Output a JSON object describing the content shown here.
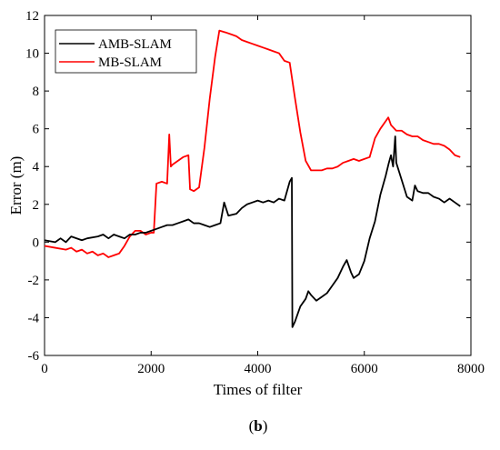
{
  "chart_data": {
    "type": "line",
    "title": "",
    "xlabel": "Times of filter",
    "ylabel": "Error (m)",
    "xlim": [
      0,
      8000
    ],
    "ylim": [
      -6,
      12
    ],
    "xticks": [
      0,
      2000,
      4000,
      6000,
      8000
    ],
    "yticks": [
      -6,
      -4,
      -2,
      0,
      2,
      4,
      6,
      8,
      10,
      12
    ],
    "grid": false,
    "legend": "top-left",
    "series": [
      {
        "name": "AMB-SLAM",
        "color": "#000000",
        "points": [
          [
            0,
            0.1
          ],
          [
            200,
            0.0
          ],
          [
            300,
            0.2
          ],
          [
            400,
            0.0
          ],
          [
            500,
            0.3
          ],
          [
            700,
            0.1
          ],
          [
            800,
            0.2
          ],
          [
            1000,
            0.3
          ],
          [
            1100,
            0.4
          ],
          [
            1200,
            0.2
          ],
          [
            1300,
            0.4
          ],
          [
            1400,
            0.3
          ],
          [
            1500,
            0.2
          ],
          [
            1600,
            0.4
          ],
          [
            1700,
            0.4
          ],
          [
            1800,
            0.5
          ],
          [
            1900,
            0.5
          ],
          [
            2000,
            0.6
          ],
          [
            2100,
            0.7
          ],
          [
            2200,
            0.8
          ],
          [
            2300,
            0.9
          ],
          [
            2400,
            0.9
          ],
          [
            2500,
            1.0
          ],
          [
            2600,
            1.1
          ],
          [
            2700,
            1.2
          ],
          [
            2800,
            1.0
          ],
          [
            2900,
            1.0
          ],
          [
            3000,
            0.9
          ],
          [
            3100,
            0.8
          ],
          [
            3200,
            0.9
          ],
          [
            3300,
            1.0
          ],
          [
            3370,
            2.1
          ],
          [
            3450,
            1.4
          ],
          [
            3600,
            1.5
          ],
          [
            3700,
            1.8
          ],
          [
            3800,
            2.0
          ],
          [
            3900,
            2.1
          ],
          [
            4000,
            2.2
          ],
          [
            4100,
            2.1
          ],
          [
            4200,
            2.2
          ],
          [
            4300,
            2.1
          ],
          [
            4400,
            2.3
          ],
          [
            4500,
            2.2
          ],
          [
            4600,
            3.2
          ],
          [
            4640,
            3.4
          ],
          [
            4650,
            -4.5
          ],
          [
            4700,
            -4.2
          ],
          [
            4800,
            -3.4
          ],
          [
            4900,
            -3.0
          ],
          [
            4950,
            -2.6
          ],
          [
            5000,
            -2.8
          ],
          [
            5100,
            -3.1
          ],
          [
            5200,
            -2.9
          ],
          [
            5300,
            -2.7
          ],
          [
            5400,
            -2.3
          ],
          [
            5500,
            -1.9
          ],
          [
            5600,
            -1.3
          ],
          [
            5670,
            -0.95
          ],
          [
            5750,
            -1.6
          ],
          [
            5800,
            -1.9
          ],
          [
            5900,
            -1.7
          ],
          [
            6000,
            -1.0
          ],
          [
            6100,
            0.2
          ],
          [
            6200,
            1.1
          ],
          [
            6300,
            2.5
          ],
          [
            6400,
            3.5
          ],
          [
            6460,
            4.2
          ],
          [
            6500,
            4.6
          ],
          [
            6540,
            4.0
          ],
          [
            6580,
            5.6
          ],
          [
            6600,
            4.2
          ],
          [
            6700,
            3.3
          ],
          [
            6800,
            2.4
          ],
          [
            6900,
            2.2
          ],
          [
            6950,
            3.0
          ],
          [
            7000,
            2.7
          ],
          [
            7100,
            2.6
          ],
          [
            7200,
            2.6
          ],
          [
            7300,
            2.4
          ],
          [
            7400,
            2.3
          ],
          [
            7500,
            2.1
          ],
          [
            7600,
            2.3
          ],
          [
            7700,
            2.1
          ],
          [
            7800,
            1.9
          ]
        ]
      },
      {
        "name": "MB-SLAM",
        "color": "#ff0000",
        "points": [
          [
            0,
            -0.2
          ],
          [
            200,
            -0.3
          ],
          [
            400,
            -0.4
          ],
          [
            500,
            -0.3
          ],
          [
            600,
            -0.5
          ],
          [
            700,
            -0.4
          ],
          [
            800,
            -0.6
          ],
          [
            900,
            -0.5
          ],
          [
            1000,
            -0.7
          ],
          [
            1100,
            -0.6
          ],
          [
            1200,
            -0.8
          ],
          [
            1300,
            -0.7
          ],
          [
            1400,
            -0.6
          ],
          [
            1500,
            -0.2
          ],
          [
            1600,
            0.3
          ],
          [
            1700,
            0.6
          ],
          [
            1800,
            0.6
          ],
          [
            1900,
            0.4
          ],
          [
            2000,
            0.5
          ],
          [
            2050,
            0.5
          ],
          [
            2100,
            3.1
          ],
          [
            2200,
            3.2
          ],
          [
            2300,
            3.1
          ],
          [
            2340,
            5.7
          ],
          [
            2370,
            4.0
          ],
          [
            2400,
            4.1
          ],
          [
            2500,
            4.3
          ],
          [
            2600,
            4.5
          ],
          [
            2700,
            4.6
          ],
          [
            2730,
            2.8
          ],
          [
            2800,
            2.7
          ],
          [
            2900,
            2.9
          ],
          [
            3000,
            5.0
          ],
          [
            3100,
            7.6
          ],
          [
            3200,
            9.8
          ],
          [
            3280,
            11.2
          ],
          [
            3400,
            11.1
          ],
          [
            3500,
            11.0
          ],
          [
            3600,
            10.9
          ],
          [
            3700,
            10.7
          ],
          [
            3800,
            10.6
          ],
          [
            3900,
            10.5
          ],
          [
            4000,
            10.4
          ],
          [
            4100,
            10.3
          ],
          [
            4200,
            10.2
          ],
          [
            4300,
            10.1
          ],
          [
            4400,
            10.0
          ],
          [
            4500,
            9.6
          ],
          [
            4600,
            9.5
          ],
          [
            4700,
            7.6
          ],
          [
            4800,
            5.8
          ],
          [
            4900,
            4.3
          ],
          [
            5000,
            3.8
          ],
          [
            5100,
            3.8
          ],
          [
            5200,
            3.8
          ],
          [
            5300,
            3.9
          ],
          [
            5400,
            3.9
          ],
          [
            5500,
            4.0
          ],
          [
            5600,
            4.2
          ],
          [
            5700,
            4.3
          ],
          [
            5800,
            4.4
          ],
          [
            5900,
            4.3
          ],
          [
            6000,
            4.4
          ],
          [
            6100,
            4.5
          ],
          [
            6200,
            5.5
          ],
          [
            6300,
            6.0
          ],
          [
            6400,
            6.4
          ],
          [
            6450,
            6.6
          ],
          [
            6500,
            6.2
          ],
          [
            6600,
            5.9
          ],
          [
            6700,
            5.9
          ],
          [
            6800,
            5.7
          ],
          [
            6900,
            5.6
          ],
          [
            7000,
            5.6
          ],
          [
            7100,
            5.4
          ],
          [
            7200,
            5.3
          ],
          [
            7300,
            5.2
          ],
          [
            7400,
            5.2
          ],
          [
            7500,
            5.1
          ],
          [
            7600,
            4.9
          ],
          [
            7700,
            4.6
          ],
          [
            7800,
            4.5
          ]
        ]
      }
    ]
  },
  "caption": {
    "open": "(",
    "letter": "b",
    "close": ")"
  }
}
